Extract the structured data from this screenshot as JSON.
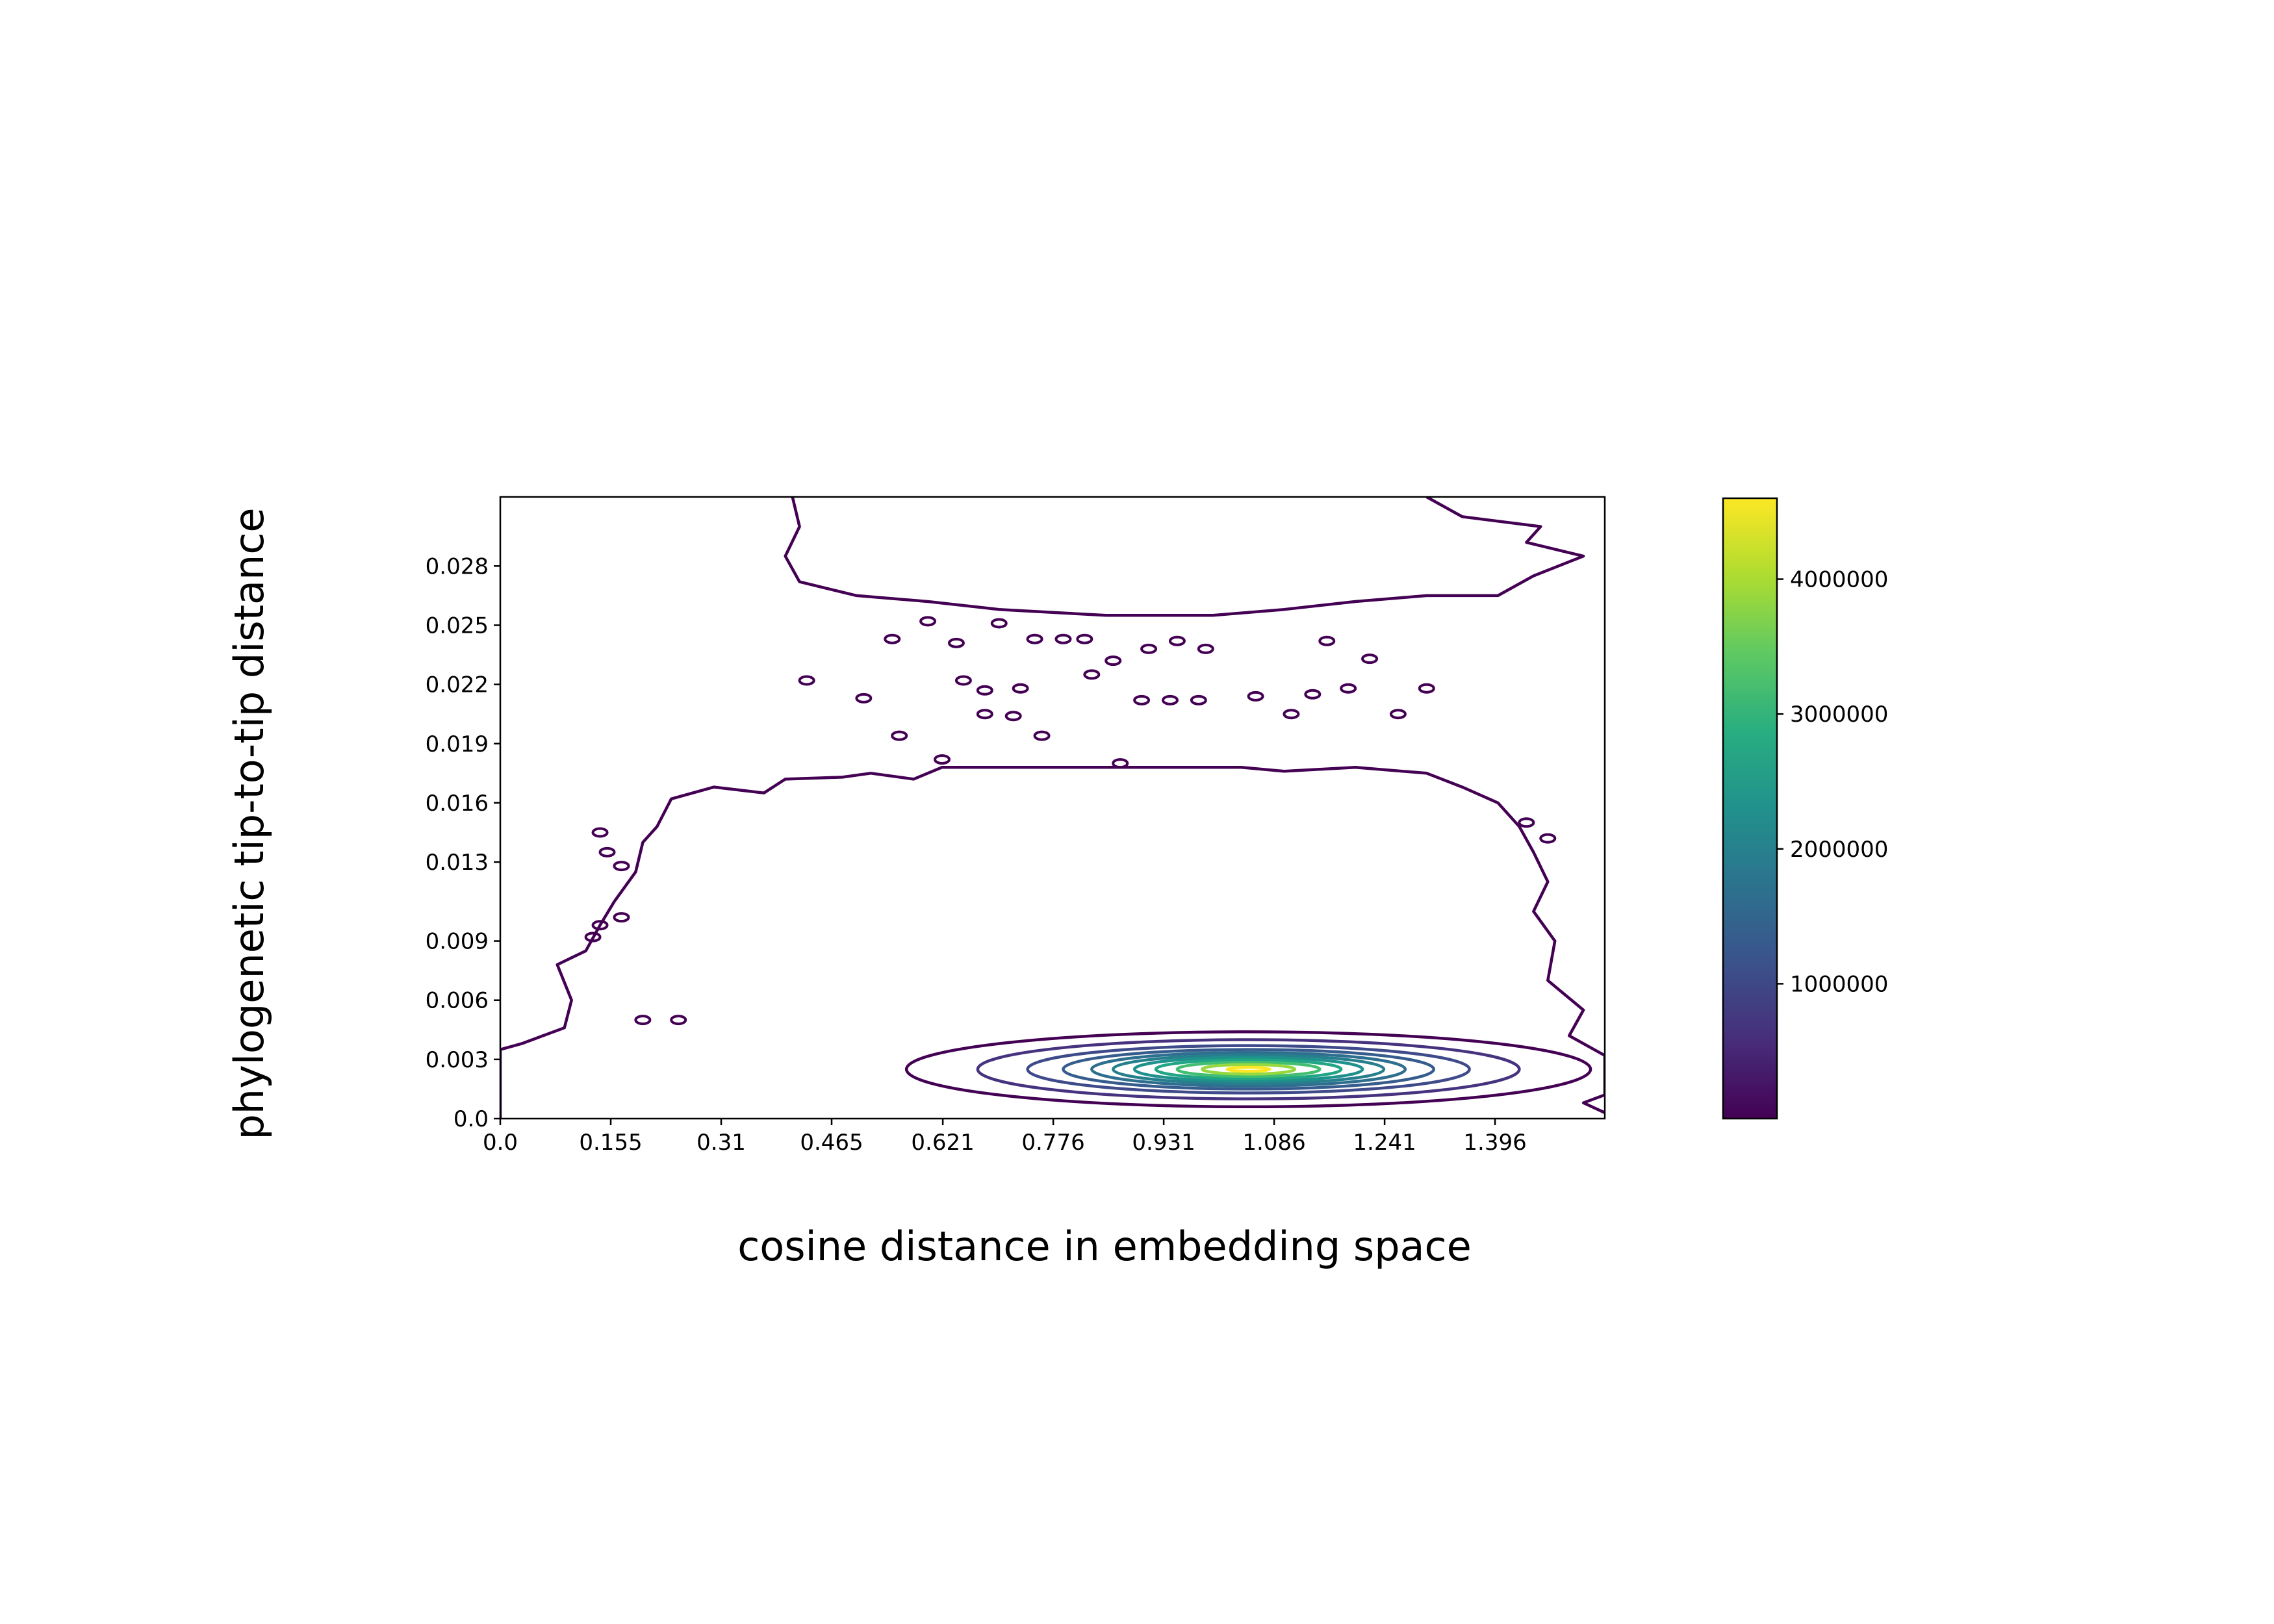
{
  "chart_data": {
    "type": "contour",
    "title": "",
    "xlabel": "cosine distance in embedding space",
    "ylabel": "phylogenetic tip-to-tip distance",
    "xlim": [
      0.0,
      1.55
    ],
    "ylim": [
      0.0,
      0.0315
    ],
    "x_ticks": [
      0.0,
      0.155,
      0.31,
      0.465,
      0.621,
      0.776,
      0.931,
      1.086,
      1.241,
      1.396
    ],
    "x_tick_labels": [
      "0.0",
      "0.155",
      "0.31",
      "0.465",
      "0.621",
      "0.776",
      "0.931",
      "1.086",
      "1.241",
      "1.396"
    ],
    "y_ticks": [
      0.0,
      0.003,
      0.006,
      0.009,
      0.013,
      0.016,
      0.019,
      0.022,
      0.025,
      0.028
    ],
    "y_tick_labels": [
      "0.0",
      "0.003",
      "0.006",
      "0.009",
      "0.013",
      "0.016",
      "0.019",
      "0.022",
      "0.025",
      "0.028"
    ],
    "grid": false,
    "colormap": "viridis",
    "colorbar": {
      "min": 0,
      "max": 4600000,
      "ticks": [
        1000000,
        2000000,
        3000000,
        4000000
      ],
      "tick_labels": [
        "1000000",
        "2000000",
        "3000000",
        "4000000"
      ]
    },
    "peak": {
      "x": 1.05,
      "y": 0.0025,
      "value": 4600000
    },
    "contour_levels": [
      {
        "level": 230000,
        "color": "#440154",
        "x_half_width": 0.48,
        "y_half_height": 0.0019
      },
      {
        "level": 690000,
        "color": "#46327e",
        "x_half_width": 0.38,
        "y_half_height": 0.0015
      },
      {
        "level": 1150000,
        "color": "#3e4a89",
        "x_half_width": 0.31,
        "y_half_height": 0.0012
      },
      {
        "level": 1610000,
        "color": "#365c8d",
        "x_half_width": 0.26,
        "y_half_height": 0.001
      },
      {
        "level": 2070000,
        "color": "#2e6e8e",
        "x_half_width": 0.22,
        "y_half_height": 0.00085
      },
      {
        "level": 2530000,
        "color": "#277f8e",
        "x_half_width": 0.19,
        "y_half_height": 0.00072
      },
      {
        "level": 2990000,
        "color": "#1f918c",
        "x_half_width": 0.16,
        "y_half_height": 0.0006
      },
      {
        "level": 3450000,
        "color": "#21a585",
        "x_half_width": 0.13,
        "y_half_height": 0.00048
      },
      {
        "level": 3910000,
        "color": "#42be71",
        "x_half_width": 0.1,
        "y_half_height": 0.00036
      },
      {
        "level": 4370000,
        "color": "#95d840",
        "x_half_width": 0.065,
        "y_half_height": 0.00024
      },
      {
        "level": 4600000,
        "color": "#fde725",
        "x_half_width": 0.03,
        "y_half_height": 0.0001
      }
    ],
    "outer_contours": [
      {
        "name": "lower-outer-contour",
        "color": "#440154",
        "points": [
          [
            0.0,
            0.0
          ],
          [
            0.0,
            0.0035
          ],
          [
            0.03,
            0.0038
          ],
          [
            0.06,
            0.0042
          ],
          [
            0.09,
            0.0046
          ],
          [
            0.1,
            0.006
          ],
          [
            0.08,
            0.0078
          ],
          [
            0.12,
            0.0085
          ],
          [
            0.14,
            0.0098
          ],
          [
            0.16,
            0.011
          ],
          [
            0.19,
            0.0125
          ],
          [
            0.2,
            0.014
          ],
          [
            0.22,
            0.0148
          ],
          [
            0.24,
            0.0162
          ],
          [
            0.3,
            0.0168
          ],
          [
            0.37,
            0.0165
          ],
          [
            0.4,
            0.0172
          ],
          [
            0.48,
            0.0173
          ],
          [
            0.52,
            0.0175
          ],
          [
            0.58,
            0.0172
          ],
          [
            0.62,
            0.0178
          ],
          [
            0.8,
            0.0178
          ],
          [
            1.04,
            0.0178
          ],
          [
            1.1,
            0.0176
          ],
          [
            1.2,
            0.0178
          ],
          [
            1.3,
            0.0175
          ],
          [
            1.35,
            0.0168
          ],
          [
            1.4,
            0.016
          ],
          [
            1.43,
            0.0148
          ],
          [
            1.45,
            0.0135
          ],
          [
            1.47,
            0.012
          ],
          [
            1.45,
            0.0105
          ],
          [
            1.48,
            0.009
          ],
          [
            1.47,
            0.007
          ],
          [
            1.52,
            0.0055
          ],
          [
            1.5,
            0.0042
          ],
          [
            1.55,
            0.0032
          ],
          [
            1.55,
            0.0012
          ],
          [
            1.52,
            0.0008
          ],
          [
            1.55,
            0.0003
          ]
        ]
      },
      {
        "name": "upper-outer-contour",
        "color": "#440154",
        "points": [
          [
            0.41,
            0.0315
          ],
          [
            0.42,
            0.03
          ],
          [
            0.4,
            0.0285
          ],
          [
            0.42,
            0.0272
          ],
          [
            0.5,
            0.0265
          ],
          [
            0.6,
            0.0262
          ],
          [
            0.7,
            0.0258
          ],
          [
            0.85,
            0.0255
          ],
          [
            1.0,
            0.0255
          ],
          [
            1.1,
            0.0258
          ],
          [
            1.2,
            0.0262
          ],
          [
            1.3,
            0.0265
          ],
          [
            1.4,
            0.0265
          ],
          [
            1.45,
            0.0275
          ],
          [
            1.52,
            0.0285
          ],
          [
            1.44,
            0.0292
          ],
          [
            1.46,
            0.03
          ],
          [
            1.35,
            0.0305
          ],
          [
            1.3,
            0.0315
          ]
        ]
      }
    ],
    "islands": [
      [
        0.43,
        0.0222
      ],
      [
        0.51,
        0.0213
      ],
      [
        0.55,
        0.0243
      ],
      [
        0.6,
        0.0252
      ],
      [
        0.56,
        0.0194
      ],
      [
        0.64,
        0.0241
      ],
      [
        0.65,
        0.0222
      ],
      [
        0.68,
        0.0217
      ],
      [
        0.68,
        0.0205
      ],
      [
        0.73,
        0.0218
      ],
      [
        0.72,
        0.0204
      ],
      [
        0.75,
        0.0243
      ],
      [
        0.79,
        0.0243
      ],
      [
        0.82,
        0.0243
      ],
      [
        0.83,
        0.0225
      ],
      [
        0.86,
        0.0232
      ],
      [
        0.91,
        0.0238
      ],
      [
        0.95,
        0.0242
      ],
      [
        0.99,
        0.0238
      ],
      [
        0.76,
        0.0194
      ],
      [
        0.87,
        0.018
      ],
      [
        0.7,
        0.0251
      ],
      [
        0.62,
        0.0182
      ],
      [
        1.06,
        0.0214
      ],
      [
        1.11,
        0.0205
      ],
      [
        1.14,
        0.0215
      ],
      [
        1.19,
        0.0218
      ],
      [
        1.22,
        0.0233
      ],
      [
        1.26,
        0.0205
      ],
      [
        1.3,
        0.0218
      ],
      [
        1.16,
        0.0242
      ],
      [
        0.14,
        0.0145
      ],
      [
        0.15,
        0.0135
      ],
      [
        0.17,
        0.0128
      ],
      [
        0.14,
        0.0098
      ],
      [
        0.17,
        0.0102
      ],
      [
        0.13,
        0.0092
      ],
      [
        0.2,
        0.005
      ],
      [
        0.25,
        0.005
      ],
      [
        1.44,
        0.015
      ],
      [
        1.47,
        0.0142
      ],
      [
        0.94,
        0.0212
      ],
      [
        0.98,
        0.0212
      ],
      [
        0.9,
        0.0212
      ]
    ]
  }
}
